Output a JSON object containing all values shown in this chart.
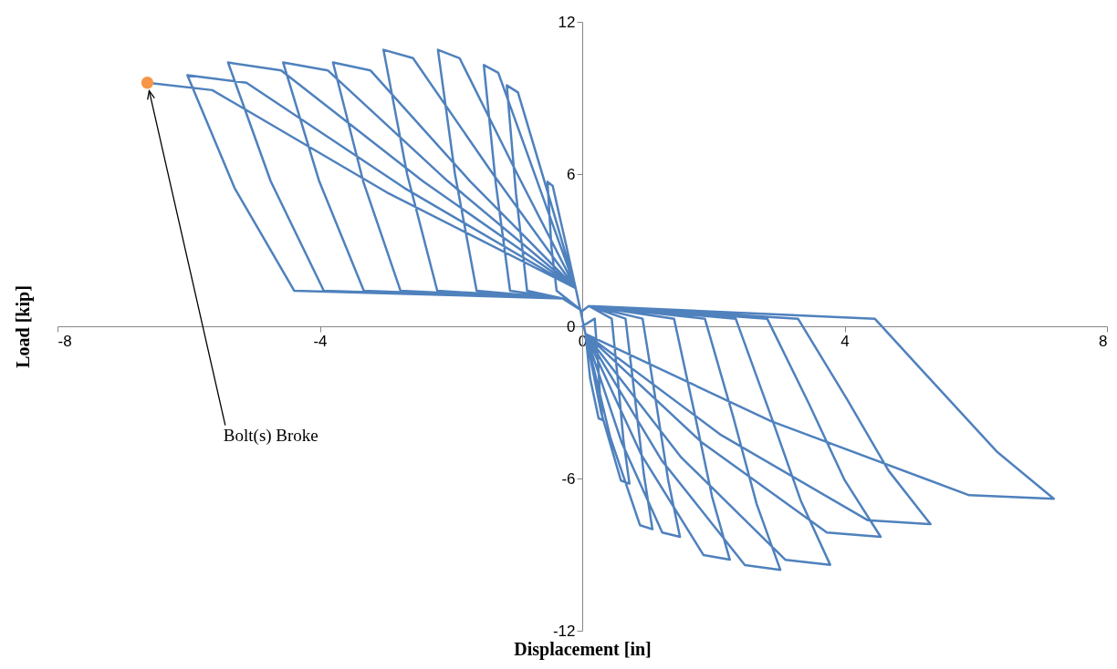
{
  "chart_data": {
    "type": "line",
    "xlabel": "Displacement [in]",
    "ylabel": "Load [kip]",
    "xlim": [
      -8,
      8
    ],
    "xticks": [
      -8,
      -4,
      0,
      4,
      8
    ],
    "ylim": [
      -12,
      12
    ],
    "yticks": [
      -12,
      -6,
      0,
      6,
      12
    ],
    "grid": false,
    "marker": "none",
    "line_style": "solid",
    "annotations": [
      {
        "text": "Bolt(s) Broke",
        "x": -6.63,
        "y": 9.6
      }
    ],
    "series": [
      {
        "color": "#4f81bd",
        "x": [
          0,
          0.19,
          0.24,
          0.27,
          0.31,
          0.25,
          0.12,
          0.05,
          -0.1,
          -0.24,
          -0.45,
          -0.53,
          -0.47,
          -0.39,
          0,
          0.1,
          0.45,
          0.55,
          0.63,
          0.72,
          0.59,
          0.29,
          0.05,
          -0.1,
          -0.52,
          -0.98,
          -1.15,
          -1.01,
          -0.84,
          -0.3,
          0,
          0.1,
          0.66,
          0.81,
          0.94,
          1.07,
          0.88,
          0.43,
          0.05,
          -0.1,
          -0.68,
          -1.28,
          -1.5,
          -1.32,
          -1.1,
          -0.3,
          0,
          0.1,
          0.92,
          1.13,
          1.31,
          1.49,
          1.22,
          0.6,
          0.05,
          -0.1,
          -0.99,
          -1.87,
          -2.2,
          -1.94,
          -1.61,
          -0.3,
          0,
          0.1,
          1.4,
          1.71,
          1.98,
          2.25,
          1.85,
          0.9,
          0.05,
          -0.1,
          -1.36,
          -2.58,
          -3.03,
          -2.67,
          -2.21,
          -0.3,
          0,
          0.1,
          1.87,
          2.3,
          2.66,
          3.02,
          2.48,
          1.21,
          0.05,
          -0.1,
          -1.71,
          -3.23,
          -3.8,
          -3.34,
          -2.77,
          -0.3,
          0,
          0.1,
          2.34,
          2.87,
          3.33,
          3.78,
          3.1,
          1.51,
          0.05,
          -0.1,
          -2.05,
          -3.88,
          -4.56,
          -4.01,
          -3.33,
          -0.3,
          0,
          0.1,
          2.82,
          3.46,
          4.0,
          4.55,
          3.73,
          1.82,
          0.05,
          -0.1,
          -2.43,
          -4.59,
          -5.4,
          -4.75,
          -3.94,
          -0.3,
          0,
          0.1,
          3.29,
          4.04,
          4.67,
          5.31,
          4.35,
          2.12,
          0.05,
          -0.1,
          -2.71,
          -5.12,
          -6.02,
          -5.3,
          -4.39,
          -0.3,
          0,
          0.1,
          4.46,
          5.46,
          6.33,
          7.19,
          5.9,
          2.88,
          0.05,
          -0.1,
          -2.98,
          -5.64,
          -6.63
        ],
        "values": [
          0,
          0.3,
          -1.37,
          -2.7,
          -3.7,
          -3.63,
          -2.04,
          -0.3,
          1.5,
          3.14,
          5.53,
          5.7,
          3.14,
          1.4,
          0.6,
          0.8,
          0.3,
          -2.29,
          -4.53,
          -6.2,
          -6.08,
          -3.41,
          -0.3,
          1.5,
          5.23,
          9.22,
          9.5,
          5.23,
          1.4,
          1.1,
          0.6,
          0.8,
          0.3,
          -2.96,
          -5.84,
          -8.0,
          -7.84,
          -4.4,
          -0.3,
          1.5,
          5.67,
          9.99,
          10.3,
          5.67,
          1.4,
          1.1,
          0.6,
          0.8,
          0.3,
          -3.07,
          -6.06,
          -8.3,
          -8.13,
          -4.57,
          -0.3,
          1.5,
          6.0,
          10.57,
          10.9,
          6.0,
          1.4,
          1.1,
          0.6,
          0.8,
          0.3,
          -3.4,
          -6.72,
          -9.2,
          -9.02,
          -5.06,
          -0.3,
          1.5,
          6.0,
          10.57,
          10.9,
          6.0,
          1.4,
          1.1,
          0.6,
          0.8,
          0.3,
          -3.55,
          -7.01,
          -9.6,
          -9.41,
          -5.28,
          -0.3,
          1.5,
          5.72,
          10.09,
          10.4,
          5.72,
          1.4,
          1.1,
          0.6,
          0.8,
          0.3,
          -3.48,
          -6.86,
          -9.4,
          -9.21,
          -5.17,
          -0.3,
          1.5,
          5.72,
          10.09,
          10.4,
          5.72,
          1.4,
          1.1,
          0.6,
          0.8,
          0.3,
          -3.07,
          -6.06,
          -8.3,
          -8.13,
          -4.57,
          -0.3,
          1.5,
          5.72,
          10.09,
          10.4,
          5.72,
          1.4,
          1.1,
          0.6,
          0.8,
          0.3,
          -2.89,
          -5.69,
          -7.8,
          -7.64,
          -4.29,
          -0.3,
          1.5,
          5.45,
          9.6,
          9.9,
          5.45,
          1.4,
          1.1,
          0.6,
          0.8,
          0.3,
          -2.52,
          -4.96,
          -6.8,
          -6.66,
          -3.74,
          -0.3,
          1.5,
          5.28,
          9.31,
          9.6
        ]
      },
      {
        "type": "scatter",
        "color": "#f79646",
        "marker": "circle",
        "x": [
          -6.63
        ],
        "values": [
          9.6
        ]
      }
    ]
  }
}
